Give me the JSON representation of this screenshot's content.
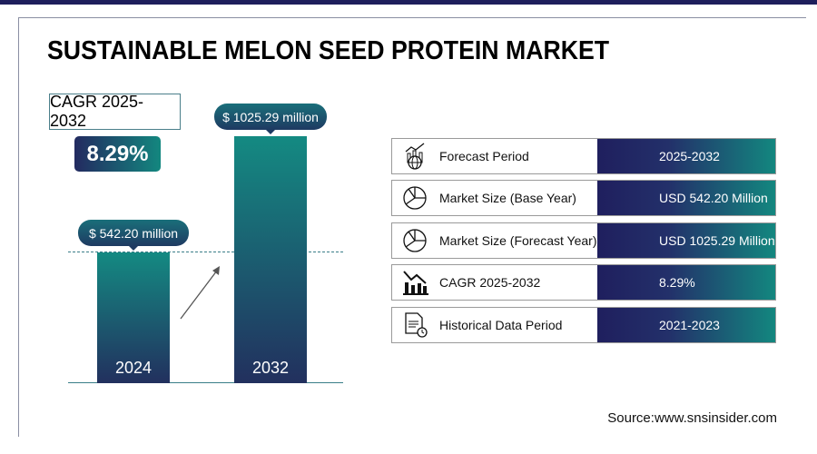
{
  "title": "SUSTAINABLE MELON SEED PROTEIN MARKET",
  "cagr": {
    "label": "CAGR 2025-2032",
    "value": "8.29%"
  },
  "chart_data": {
    "type": "bar",
    "categories": [
      "2024",
      "2032"
    ],
    "values": [
      542.2,
      1025.29
    ],
    "data_labels": [
      "$ 542.20 million",
      "$ 1025.29 million"
    ],
    "unit": "USD million",
    "colors": [
      "#148a82",
      "#22305e"
    ]
  },
  "table": [
    {
      "icon": "globe-chart-icon",
      "label": "Forecast Period",
      "value": "2025-2032"
    },
    {
      "icon": "pie-chart-icon",
      "label": "Market Size (Base Year)",
      "value": "USD 542.20 Million"
    },
    {
      "icon": "pie-chart-icon",
      "label": "Market Size (Forecast Year)",
      "value": "USD 1025.29 Million"
    },
    {
      "icon": "bar-chart-icon",
      "label": "CAGR 2025-2032",
      "value": "8.29%"
    },
    {
      "icon": "document-clock-icon",
      "label": "Historical Data Period",
      "value": "2021-2023"
    }
  ],
  "source": "Source:www.snsinsider.com"
}
